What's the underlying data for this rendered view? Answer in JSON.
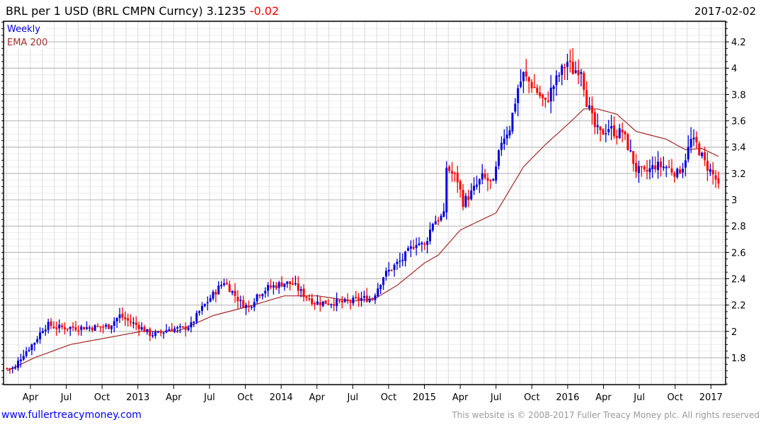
{
  "header": {
    "title": "BRL per 1 USD (BRL CMPN Curncy) 3.1235",
    "change": "-0.02",
    "date": "2017-02-02"
  },
  "footer": {
    "link": "www.fullertreacymoney.com",
    "copyright": "This website is © 2008-2017 Fuller Treacy Money plc. All rights reserved"
  },
  "colors": {
    "up": "#0000dd",
    "down": "#ff0000",
    "ema": "#a52a2a",
    "link": "#0000ff",
    "change": "#ff0000"
  },
  "chart_data": {
    "type": "candlestick",
    "title": "BRL per 1 USD (BRL CMPN Curncy)",
    "frequency": "Weekly",
    "legend": [
      {
        "label": "Weekly",
        "color": "#0000dd"
      },
      {
        "label": "EMA 200",
        "color": "#a52a2a"
      }
    ],
    "legend_placement": "top-left",
    "ylim": [
      1.6,
      4.35
    ],
    "y_ticks": [
      "1.8",
      "2",
      "2.2",
      "2.4",
      "2.6",
      "2.8",
      "3",
      "3.2",
      "3.4",
      "3.6",
      "3.8",
      "4",
      "4.2"
    ],
    "x_tick_labels": [
      "Apr",
      "Jul",
      "Oct",
      "2013",
      "Apr",
      "Jul",
      "Oct",
      "2014",
      "Apr",
      "Jul",
      "Oct",
      "2015",
      "Apr",
      "Jul",
      "Oct",
      "2016",
      "Apr",
      "Jul",
      "Oct",
      "2017"
    ],
    "x_unit": "weeks since Feb 2012",
    "close_keypoints": [
      [
        0,
        1.72
      ],
      [
        3,
        1.72
      ],
      [
        4,
        1.77
      ],
      [
        6,
        1.83
      ],
      [
        10,
        1.92
      ],
      [
        13,
        2.02
      ],
      [
        15,
        2.05
      ],
      [
        18,
        2.03
      ],
      [
        23,
        2.03
      ],
      [
        31,
        2.03
      ],
      [
        37,
        2.04
      ],
      [
        41,
        2.12
      ],
      [
        44,
        2.08
      ],
      [
        48,
        2.04
      ],
      [
        52,
        1.98
      ],
      [
        55,
        1.98
      ],
      [
        59,
        2.02
      ],
      [
        64,
        2.02
      ],
      [
        67,
        2.05
      ],
      [
        70,
        2.15
      ],
      [
        75,
        2.28
      ],
      [
        79,
        2.38
      ],
      [
        82,
        2.3
      ],
      [
        85,
        2.22
      ],
      [
        88,
        2.18
      ],
      [
        91,
        2.28
      ],
      [
        95,
        2.33
      ],
      [
        101,
        2.37
      ],
      [
        104,
        2.36
      ],
      [
        108,
        2.28
      ],
      [
        112,
        2.22
      ],
      [
        119,
        2.22
      ],
      [
        124,
        2.22
      ],
      [
        129,
        2.25
      ],
      [
        133,
        2.25
      ],
      [
        137,
        2.42
      ],
      [
        140,
        2.48
      ],
      [
        144,
        2.55
      ],
      [
        149,
        2.68
      ],
      [
        152,
        2.65
      ],
      [
        155,
        2.83
      ],
      [
        159,
        2.88
      ],
      [
        160,
        3.25
      ],
      [
        164,
        3.15
      ],
      [
        166,
        2.98
      ],
      [
        169,
        3.05
      ],
      [
        173,
        3.17
      ],
      [
        177,
        3.12
      ],
      [
        180,
        3.45
      ],
      [
        183,
        3.55
      ],
      [
        186,
        3.85
      ],
      [
        188,
        3.95
      ],
      [
        189,
        3.92
      ],
      [
        192,
        3.85
      ],
      [
        196,
        3.73
      ],
      [
        198,
        3.83
      ],
      [
        201,
        3.95
      ],
      [
        204,
        4.05
      ],
      [
        206,
        3.98
      ],
      [
        209,
        4.0
      ],
      [
        211,
        3.75
      ],
      [
        214,
        3.55
      ],
      [
        216,
        3.5
      ],
      [
        219,
        3.55
      ],
      [
        222,
        3.5
      ],
      [
        224,
        3.52
      ],
      [
        227,
        3.35
      ],
      [
        229,
        3.23
      ],
      [
        232,
        3.2
      ],
      [
        236,
        3.26
      ],
      [
        240,
        3.25
      ],
      [
        244,
        3.2
      ],
      [
        246,
        3.26
      ],
      [
        249,
        3.45
      ],
      [
        251,
        3.42
      ],
      [
        254,
        3.28
      ],
      [
        256,
        3.22
      ],
      [
        259,
        3.1235
      ]
    ],
    "ema200_keypoints": [
      [
        0,
        1.7
      ],
      [
        10,
        1.8
      ],
      [
        23,
        1.9
      ],
      [
        36,
        1.95
      ],
      [
        49,
        2.0
      ],
      [
        62,
        2.0
      ],
      [
        75,
        2.12
      ],
      [
        88,
        2.19
      ],
      [
        101,
        2.27
      ],
      [
        113,
        2.27
      ],
      [
        126,
        2.23
      ],
      [
        134,
        2.25
      ],
      [
        142,
        2.35
      ],
      [
        152,
        2.52
      ],
      [
        157,
        2.58
      ],
      [
        165,
        2.77
      ],
      [
        178,
        2.9
      ],
      [
        188,
        3.25
      ],
      [
        196,
        3.42
      ],
      [
        204,
        3.57
      ],
      [
        210,
        3.69
      ],
      [
        215,
        3.69
      ],
      [
        222,
        3.65
      ],
      [
        229,
        3.52
      ],
      [
        240,
        3.46
      ],
      [
        247,
        3.38
      ],
      [
        253,
        3.39
      ],
      [
        259,
        3.33
      ]
    ],
    "last_close": 3.1235
  }
}
